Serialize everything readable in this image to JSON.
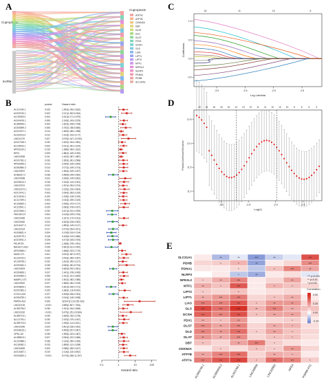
{
  "panels": {
    "a": "A",
    "b": "B",
    "c": "C",
    "d": "D",
    "e": "E"
  },
  "panel_a": {
    "left_labels": [
      "Cuproptosis",
      "lncRNA"
    ],
    "legend_title": "Cuproptosis",
    "genes": [
      "ATP7A",
      "ATP7B",
      "CDKN2A",
      "DBT",
      "DLAT",
      "DLD",
      "DLST",
      "FDX1",
      "GCSH",
      "GLS",
      "LIAS",
      "LIPT1",
      "LIPT2",
      "MTF1",
      "NFE2L2",
      "NLRP3",
      "PDHA1",
      "PDHB",
      "SLC31A1"
    ],
    "colors": [
      "#f4a3a3",
      "#f6b58b",
      "#eec780",
      "#e6d27f",
      "#cfdc7c",
      "#a9db80",
      "#8fd89a",
      "#7fd6b8",
      "#7fd2d2",
      "#7fc8e0",
      "#86b8ec",
      "#9aa6f0",
      "#b49cf0",
      "#cf98ea",
      "#e294da",
      "#ee94c4",
      "#f29bb0",
      "#f2a4a0",
      "#e8b0a8"
    ]
  },
  "chart_data": [
    {
      "type": "forest",
      "panel": "B",
      "columns": [
        "",
        "pvalue",
        "Hazard ratio"
      ],
      "xlabel": "Hazard ratio",
      "xscale": "log",
      "xticks": [
        "0.1",
        "1",
        "10",
        "100"
      ],
      "rows": [
        {
          "label": "AC117430.1",
          "p": "0.025",
          "hr": "1.993(1.093-3.632)"
        },
        {
          "label": "AC009740.1",
          "p": "0.002",
          "hr": "3.121(1.502-6.454)"
        },
        {
          "label": "AL139353.2",
          "p": "0.004",
          "hr": "0.341(0.171-0.679)"
        },
        {
          "label": "AC004076.1",
          "p": "0.006",
          "hr": "2.108(1.243-3.575)"
        },
        {
          "label": "AL356966.1",
          "p": "0.004",
          "hr": "1.823(1.208-2.758)"
        },
        {
          "label": "AC005699.2",
          "p": "0.006",
          "hr": "2.752(1.336-5.666)"
        },
        {
          "label": "AC024707.1",
          "p": "0.014",
          "hr": "1.469(1.080-1.998)"
        },
        {
          "label": "AL031919.4",
          "p": "0.012",
          "hr": "1.914(1.153-3.177)"
        },
        {
          "label": "LINC01270",
          "p": "0.007",
          "hr": "3.976(1.447-10.930)"
        },
        {
          "label": "AC027155.1",
          "p": "0.032",
          "hr": "1.642(1.044-2.581)"
        },
        {
          "label": "AL109930.1",
          "p": "0.003",
          "hr": "2.031(1.281-3.220)"
        },
        {
          "label": "AP002310.1",
          "p": "0.016",
          "hr": "1.388(1.063-1.812)"
        },
        {
          "label": "NFE4",
          "p": "0.009",
          "hr": "1.882(1.169-3.030)"
        },
        {
          "label": "LINC02535",
          "p": "0.011",
          "hr": "1.432(1.087-1.887)"
        },
        {
          "label": "AC007391.2",
          "p": "0.032",
          "hr": "1.953(1.061-3.598)"
        },
        {
          "label": "AP003065.2",
          "p": "0.013",
          "hr": "2.060(1.165-3.643)"
        },
        {
          "label": "AC084854.3",
          "p": "0.014",
          "hr": "2.072(1.159-3.704)"
        },
        {
          "label": "LINC00870",
          "p": "0.011",
          "hr": "1.964(1.169-3.297)"
        },
        {
          "label": "AL583317.2",
          "p": "0.038",
          "hr": "0.486(0.245-0.962)"
        },
        {
          "label": "LINC00998",
          "p": "0.022",
          "hr": "2.546(1.145-5.662)"
        },
        {
          "label": "AC008124.1",
          "p": "0.018",
          "hr": "2.163(1.143-4.091)"
        },
        {
          "label": "LINC02201",
          "p": "0.023",
          "hr": "1.921(1.094-3.374)"
        },
        {
          "label": "LINC02272.1",
          "p": "0.014",
          "hr": "2.315(1.190-4.504)"
        },
        {
          "label": "AC013741.1",
          "p": "0.003",
          "hr": "2.064(1.283-3.319)"
        },
        {
          "label": "AC113416.1",
          "p": "0.020",
          "hr": "1.918(1.108-3.319)"
        },
        {
          "label": "AC117499.1",
          "p": "0.004",
          "hr": "2.044(1.259-3.319)"
        },
        {
          "label": "AC108000.1",
          "p": "0.003",
          "hr": "2.545(1.373-4.717)"
        },
        {
          "label": "AC112901.1",
          "p": "0.029",
          "hr": "2.083(1.078-4.027)"
        },
        {
          "label": "AC024940.1",
          "p": "0.032",
          "hr": "0.421(0.191-0.929)"
        },
        {
          "label": "FBXO30-DT",
          "p": "0.004",
          "hr": "0.416(0.229-0.754)"
        },
        {
          "label": "LINC02465",
          "p": "0.014",
          "hr": "2.167(1.170-4.012)"
        },
        {
          "label": "LINC00062",
          "p": "0.024",
          "hr": "0.453(0.228-0.902)"
        },
        {
          "label": "AC011427.2",
          "p": "0.012",
          "hr": "1.893(1.149-3.117)"
        },
        {
          "label": "LINC02224",
          "p": "0.017",
          "hr": "0.470(0.254-0.871)"
        },
        {
          "label": "AC008811.4",
          "p": "0.004",
          "hr": "0.376(0.193-0.734)"
        },
        {
          "label": "AC005779.1",
          "p": "0.018",
          "hr": "0.436(0.219-0.866)"
        },
        {
          "label": "AC020911.2",
          "p": "0.026",
          "hr": "0.474(0.245-0.915)"
        },
        {
          "label": "PELATON",
          "p": "0.004",
          "hr": "1.268(1.078-1.491)"
        },
        {
          "label": "BAGALT1-AS1",
          "p": "0.028",
          "hr": "0.381(0.161-0.902)"
        },
        {
          "label": "AP003486.1",
          "p": "0.040",
          "hr": "1.668(1.023-2.719)"
        },
        {
          "label": "MAGI1-IT1",
          "p": "0.001",
          "hr": "3.002(1.557-5.787)"
        },
        {
          "label": "AL162242.2",
          "p": "0.029",
          "hr": "2.093(1.080-4.057)"
        },
        {
          "label": "AC106795.1",
          "p": "0.032",
          "hr": "1.814(1.052-3.127)"
        },
        {
          "label": "AC092542.1",
          "p": "0.035",
          "hr": "3.083(1.081-8.794)"
        },
        {
          "label": "LINC02503",
          "p": "0.005",
          "hr": "0.483(0.292-0.801)"
        },
        {
          "label": "AC090826.1",
          "p": "0.027",
          "hr": "1.941(1.078-3.495)"
        },
        {
          "label": "AC009063.2",
          "p": "0.008",
          "hr": "2.161(1.221-3.825)"
        },
        {
          "label": "NAMPL2-IT2",
          "p": "0.015",
          "hr": "1.502(1.082-2.085)"
        },
        {
          "label": "LINC00520",
          "p": "0.027",
          "hr": "1.686(1.062-2.678)"
        },
        {
          "label": "AC008815.1",
          "p": "0.004",
          "hr": "0.361(0.180-0.721)"
        },
        {
          "label": "AC097662.2",
          "p": "0.025",
          "hr": "2.383(1.116-5.090)"
        },
        {
          "label": "COX10-AS1",
          "p": "0.027",
          "hr": "0.496(0.266-0.924)"
        },
        {
          "label": "AC084759.1",
          "p": "0.015",
          "hr": "2.044(1.148-3.638)"
        },
        {
          "label": "PAPPA-AS2",
          "p": "0.006",
          "hr": "18.547(2.213-155.423)"
        },
        {
          "label": "LINC02106",
          "p": "<0.001",
          "hr": "3.689(1.807-7.534)"
        },
        {
          "label": "AL353796.2",
          "p": "0.036",
          "hr": "1.941(1.044-3.608)"
        },
        {
          "label": "LINC02332",
          "p": "<0.001",
          "hr": "5.475(1.251-23.964)"
        },
        {
          "label": "AL359715.1",
          "p": "0.039",
          "hr": "1.839(1.032-3.278)"
        },
        {
          "label": "AL121790.1",
          "p": "0.030",
          "hr": "2.193(1.079-4.457)"
        },
        {
          "label": "AL359715.3",
          "p": "0.019",
          "hr": "1.946(1.114-3.401)"
        },
        {
          "label": "LINC02046",
          "p": "0.024",
          "hr": "0.461(0.236-0.902)"
        },
        {
          "label": "AC008125.1",
          "p": "0.007",
          "hr": "0.455(0.257-0.807)"
        },
        {
          "label": "OPN1-AS",
          "p": "0.039",
          "hr": "1.595(1.023-2.487)"
        },
        {
          "label": "AL358515.1",
          "p": "0.007",
          "hr": "2.064(1.222-3.486)"
        },
        {
          "label": "AC104986.1",
          "p": "0.036",
          "hr": "2.134(1.050-4.339)"
        },
        {
          "label": "AL139382.1",
          "p": "0.015",
          "hr": "1.899(1.131-3.188)"
        },
        {
          "label": "LINC00839",
          "p": "0.003",
          "hr": "2.088(1.280-3.407)"
        },
        {
          "label": "AC010267.1",
          "p": "0.019",
          "hr": "2.116(1.130-3.962)"
        },
        {
          "label": "AC093520.2",
          "p": "<0.001",
          "hr": "5.073(2.286-11.257)"
        }
      ]
    },
    {
      "type": "line",
      "panel": "C",
      "xlabel": "Log Lambda",
      "ylabel": "Coefficients",
      "xticks": [
        "-3.0",
        "-2.5",
        "-2.0",
        "-1.5"
      ],
      "yticks": [
        "1.0",
        "0.5",
        "0.0",
        "-0.5"
      ],
      "top_ticks": [
        "16",
        "11",
        "10",
        "6"
      ]
    },
    {
      "type": "scatter",
      "panel": "D",
      "xlabel": "Log(λ)",
      "ylabel": "Partial Likelihood Deviance",
      "xticks": [
        "-3.0",
        "-2.5",
        "-2.0",
        "-1.5"
      ],
      "yticks": [
        "12.5",
        "12.0",
        "11.5",
        "11.0"
      ],
      "top_ticks": [
        "19",
        "16",
        "16",
        "16",
        "16",
        "14",
        "13",
        "12",
        "11",
        "11",
        "10",
        "10",
        "10",
        "6",
        "6",
        "6",
        "3"
      ]
    },
    {
      "type": "heatmap",
      "panel": "E",
      "rows": [
        "SLC31A1",
        "PDHB",
        "PDHA1",
        "NLRP3",
        "NFE2L2",
        "MTF1",
        "LIPT2",
        "LIPT1",
        "LIAS",
        "GLS",
        "GCSH",
        "FDX1",
        "DLST",
        "DLD",
        "DLAT",
        "DBT",
        "CDKN2A",
        "ATP7B",
        "ATP7A"
      ],
      "cols": [
        "AC009740.1",
        "AC008450.2",
        "AL353796.1",
        "LINC00869",
        "LINC02682",
        "NFE4",
        "P3M99-AS1"
      ],
      "legend_title": "Correlation",
      "legend_ticks": [
        "0.50",
        "0.25",
        "0.00",
        "-0.25"
      ],
      "sig_legend": [
        "*** p<0.001",
        "** p<0.01",
        "* p<0.05"
      ]
    }
  ],
  "heat_values": [
    [
      0.05,
      -0.15,
      -0.05,
      -0.22,
      -0.1,
      -0.05,
      0.42
    ],
    [
      0.1,
      0.12,
      0.18,
      -0.2,
      0.05,
      0.1,
      0.28
    ],
    [
      0.06,
      0.05,
      0.1,
      -0.12,
      0.15,
      0.3,
      0.22
    ],
    [
      0.0,
      0.05,
      -0.12,
      -0.18,
      0.05,
      0.08,
      -0.05
    ],
    [
      0.12,
      0.2,
      0.3,
      0.05,
      0.1,
      0.22,
      0.06
    ],
    [
      0.2,
      0.15,
      0.4,
      0.05,
      0.18,
      0.15,
      0.1
    ],
    [
      0.12,
      0.1,
      0.15,
      0.05,
      0.08,
      0.1,
      0.0
    ],
    [
      0.2,
      0.25,
      0.32,
      0.1,
      0.15,
      0.2,
      0.05
    ],
    [
      0.32,
      0.3,
      0.4,
      0.15,
      0.25,
      0.25,
      0.1
    ],
    [
      0.45,
      0.35,
      0.5,
      0.18,
      0.3,
      0.2,
      0.15
    ],
    [
      0.38,
      0.3,
      0.42,
      0.15,
      0.22,
      0.22,
      0.1
    ],
    [
      0.2,
      0.15,
      0.25,
      0.05,
      0.1,
      0.12,
      0.05
    ],
    [
      0.28,
      0.22,
      0.3,
      0.1,
      0.2,
      0.18,
      0.08
    ],
    [
      0.3,
      0.25,
      0.35,
      0.12,
      0.22,
      0.15,
      0.1
    ],
    [
      0.25,
      0.2,
      0.28,
      0.1,
      0.15,
      0.15,
      0.08
    ],
    [
      0.15,
      0.1,
      0.22,
      0.32,
      0.12,
      0.08,
      0.05
    ],
    [
      0.05,
      0.12,
      0.08,
      0.15,
      0.12,
      0.25,
      0.1
    ],
    [
      0.22,
      0.3,
      0.35,
      0.1,
      0.2,
      0.18,
      0.05
    ],
    [
      0.32,
      0.4,
      0.45,
      0.15,
      0.35,
      0.3,
      0.12
    ]
  ],
  "heat_sig": [
    [
      "",
      "**",
      "**",
      "***",
      "**",
      "",
      "***"
    ],
    [
      "",
      "*",
      "*",
      "**",
      "",
      "",
      "***"
    ],
    [
      "",
      "",
      "*",
      "",
      "*",
      "***",
      "**"
    ],
    [
      "",
      "",
      "*",
      "**",
      "",
      "",
      ""
    ],
    [
      "*",
      "**",
      "***",
      "",
      "",
      "**",
      ""
    ],
    [
      "**",
      "*",
      "***",
      "",
      "*",
      "*",
      ""
    ],
    [
      "*",
      "",
      "*",
      "",
      "",
      "",
      ""
    ],
    [
      "**",
      "***",
      "***",
      "",
      "*",
      "**",
      ""
    ],
    [
      "***",
      "***",
      "***",
      "*",
      "**",
      "**",
      ""
    ],
    [
      "***",
      "***",
      "***",
      "**",
      "***",
      "**",
      "*"
    ],
    [
      "***",
      "***",
      "***",
      "*",
      "**",
      "**",
      ""
    ],
    [
      "**",
      "*",
      "**",
      "",
      "",
      "*",
      ""
    ],
    [
      "***",
      "**",
      "***",
      "",
      "**",
      "*",
      ""
    ],
    [
      "***",
      "**",
      "***",
      "*",
      "**",
      "*",
      ""
    ],
    [
      "**",
      "**",
      "***",
      "",
      "*",
      "*",
      ""
    ],
    [
      "*",
      "",
      "**",
      "***",
      "*",
      "",
      ""
    ],
    [
      "",
      "*",
      "",
      "*",
      "*",
      "**",
      ""
    ],
    [
      "**",
      "***",
      "***",
      "",
      "**",
      "*",
      ""
    ],
    [
      "***",
      "***",
      "***",
      "*",
      "***",
      "***",
      "*"
    ]
  ]
}
